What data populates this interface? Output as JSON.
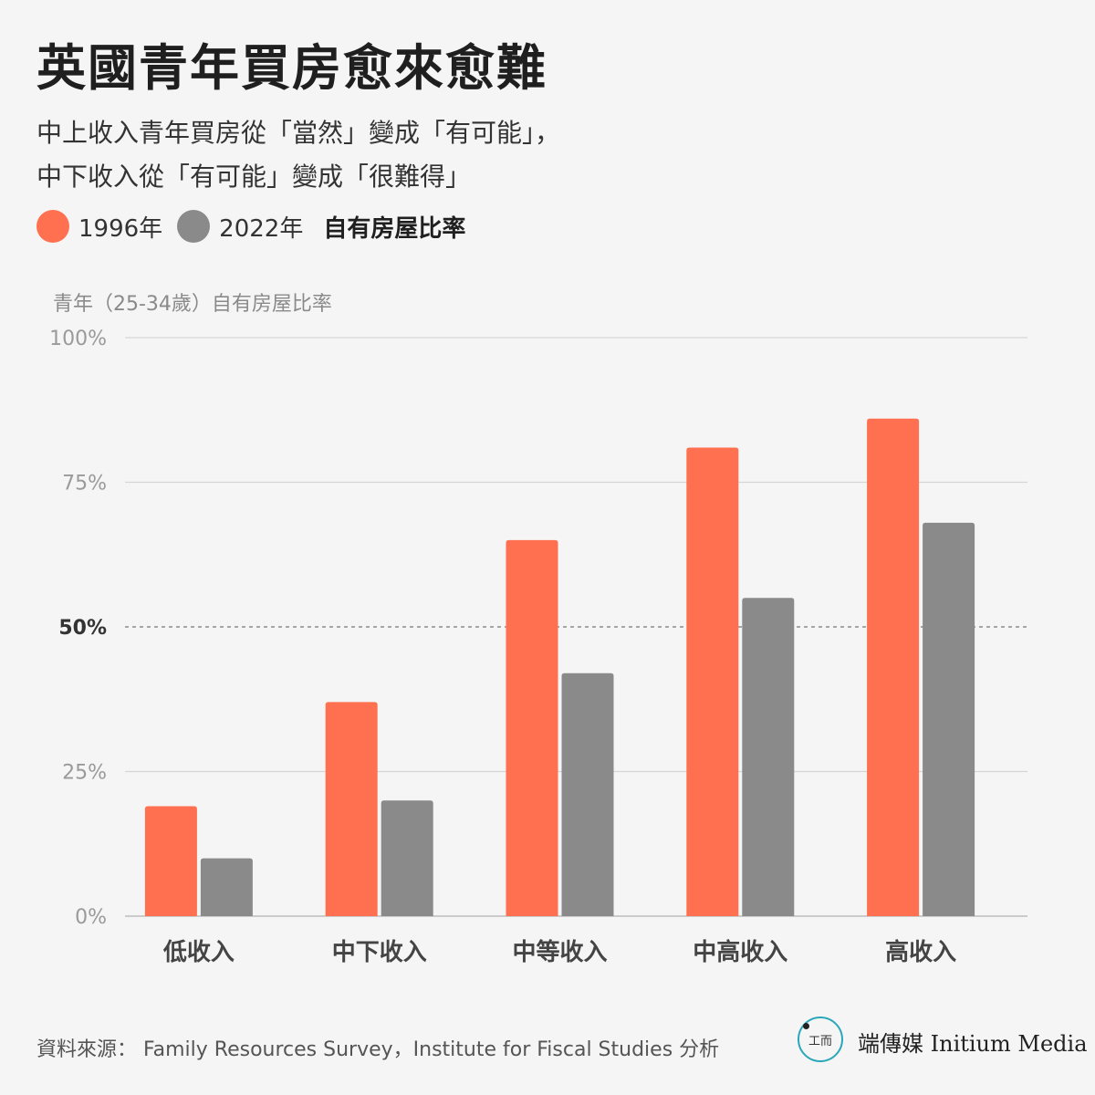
{
  "header": {
    "title": "英國青年買房愈來愈難",
    "subtitle_line1": "中上收入青年買房從「當然」變成「有可能」，",
    "subtitle_line2": "中下收入從「有可能」變成「很難得」"
  },
  "legend": {
    "items": [
      {
        "label": "1996年",
        "color": "#ff7050"
      },
      {
        "label": "2022年",
        "color": "#8a8a8a"
      }
    ],
    "title": "自有房屋比率"
  },
  "chart_data": {
    "type": "bar",
    "ylabel": "青年（25-34歲）自有房屋比率",
    "ylim": [
      0,
      100
    ],
    "yticks": [
      "0%",
      "25%",
      "50%",
      "75%",
      "100%"
    ],
    "reference_line": 50,
    "categories": [
      "低收入",
      "中下收入",
      "中等收入",
      "中高收入",
      "高收入"
    ],
    "series": [
      {
        "name": "1996年",
        "color": "#ff7050",
        "values": [
          19,
          37,
          65,
          81,
          86
        ]
      },
      {
        "name": "2022年",
        "color": "#8a8a8a",
        "values": [
          10,
          20,
          42,
          55,
          68
        ]
      }
    ],
    "grid": true
  },
  "footer": {
    "source": "資料來源： Family Resources Survey，Institute for Fiscal Studies 分析",
    "logo_glyph": "工而",
    "brand": "端傳媒 Initium Media"
  }
}
